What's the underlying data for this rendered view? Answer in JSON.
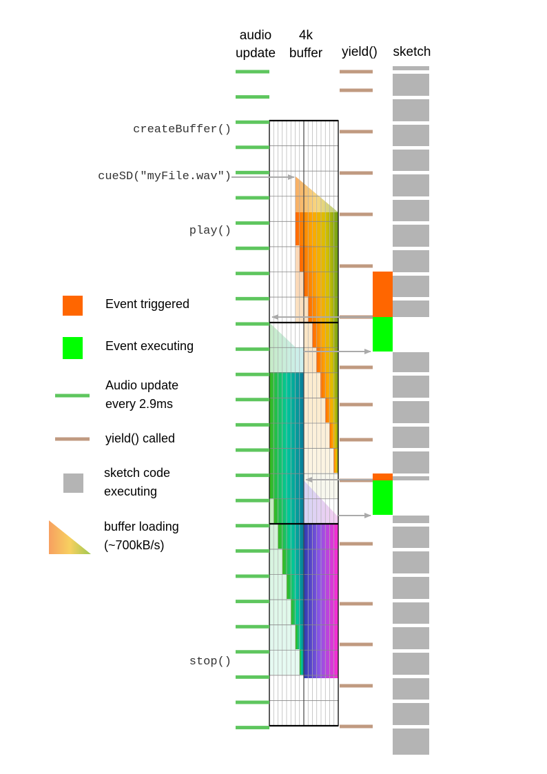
{
  "columns": {
    "audio_update": "audio\nupdate",
    "buffer": "4k\nbuffer",
    "yield": "yield()",
    "sketch": "sketch"
  },
  "code_labels": {
    "create_buffer": "createBuffer()",
    "cue_sd": "cueSD(\"myFile.wav\")",
    "play": "play()",
    "stop": "stop()"
  },
  "legend": {
    "event_triggered": "Event triggered",
    "event_executing": "Event executing",
    "audio_update": "Audio update\nevery 2.9ms",
    "yield_called": "yield() called",
    "sketch_code": "sketch code\nexecuting",
    "buffer_loading": "buffer loading\n(~700kB/s)"
  },
  "colors": {
    "audio_update": "#5ec65e",
    "yield": "#c09a80",
    "sketch": "#b4b4b4",
    "event_triggered": "#ff6600",
    "event_executing": "#00ff00",
    "arrow": "#aaaaaa",
    "grid": "#777777"
  }
}
